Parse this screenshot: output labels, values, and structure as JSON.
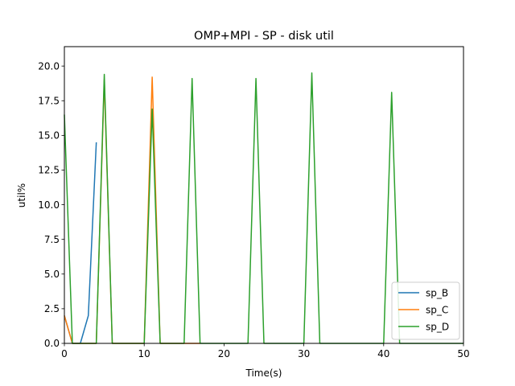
{
  "chart_data": {
    "type": "line",
    "title": "OMP+MPI - SP - disk util",
    "xlabel": "Time(s)",
    "ylabel": "util%",
    "xlim": [
      0,
      50
    ],
    "ylim": [
      0,
      21.4
    ],
    "xticks": [
      0,
      10,
      20,
      30,
      40,
      50
    ],
    "xtick_labels": [
      "0",
      "10",
      "20",
      "30",
      "40",
      "50"
    ],
    "yticks": [
      0,
      2.5,
      5,
      7.5,
      10,
      12.5,
      15,
      17.5,
      20
    ],
    "ytick_labels": [
      "0.0",
      "2.5",
      "5.0",
      "7.5",
      "10.0",
      "12.5",
      "15.0",
      "17.5",
      "20.0"
    ],
    "grid": false,
    "legend_position": "lower-right",
    "series": [
      {
        "name": "sp_B",
        "color": "#1f77b4",
        "x": [
          0,
          1,
          2,
          3,
          4
        ],
        "y": [
          2.0,
          0,
          0,
          2.0,
          14.5
        ]
      },
      {
        "name": "sp_C",
        "color": "#ff7f0e",
        "x": [
          0,
          1,
          2,
          3,
          4,
          5,
          6,
          7,
          8,
          9,
          10,
          11,
          12,
          13,
          14,
          15,
          16,
          17
        ],
        "y": [
          2.0,
          0,
          0,
          0,
          0,
          19.0,
          0,
          0,
          0,
          0,
          0,
          19.2,
          0,
          0,
          0,
          0,
          0,
          0
        ]
      },
      {
        "name": "sp_D",
        "color": "#2ca02c",
        "x": [
          0,
          1,
          2,
          3,
          4,
          5,
          6,
          7,
          8,
          9,
          10,
          11,
          12,
          13,
          14,
          15,
          16,
          17,
          18,
          19,
          20,
          21,
          22,
          23,
          24,
          25,
          26,
          27,
          28,
          29,
          30,
          31,
          32,
          33,
          34,
          35,
          36,
          37,
          38,
          39,
          40,
          41,
          42,
          43,
          44,
          45,
          46,
          47,
          48,
          49,
          50
        ],
        "y": [
          16.5,
          0,
          0,
          0,
          0,
          19.4,
          0,
          0,
          0,
          0,
          0,
          16.9,
          0,
          0,
          0,
          0,
          19.1,
          0,
          0,
          0,
          0,
          0,
          0,
          0,
          19.1,
          0,
          0,
          0,
          0,
          0,
          0,
          19.5,
          0,
          0,
          0,
          0,
          0,
          0,
          0,
          0,
          0,
          18.1,
          0,
          0,
          0,
          0,
          0,
          0,
          0,
          0,
          0
        ]
      }
    ]
  }
}
